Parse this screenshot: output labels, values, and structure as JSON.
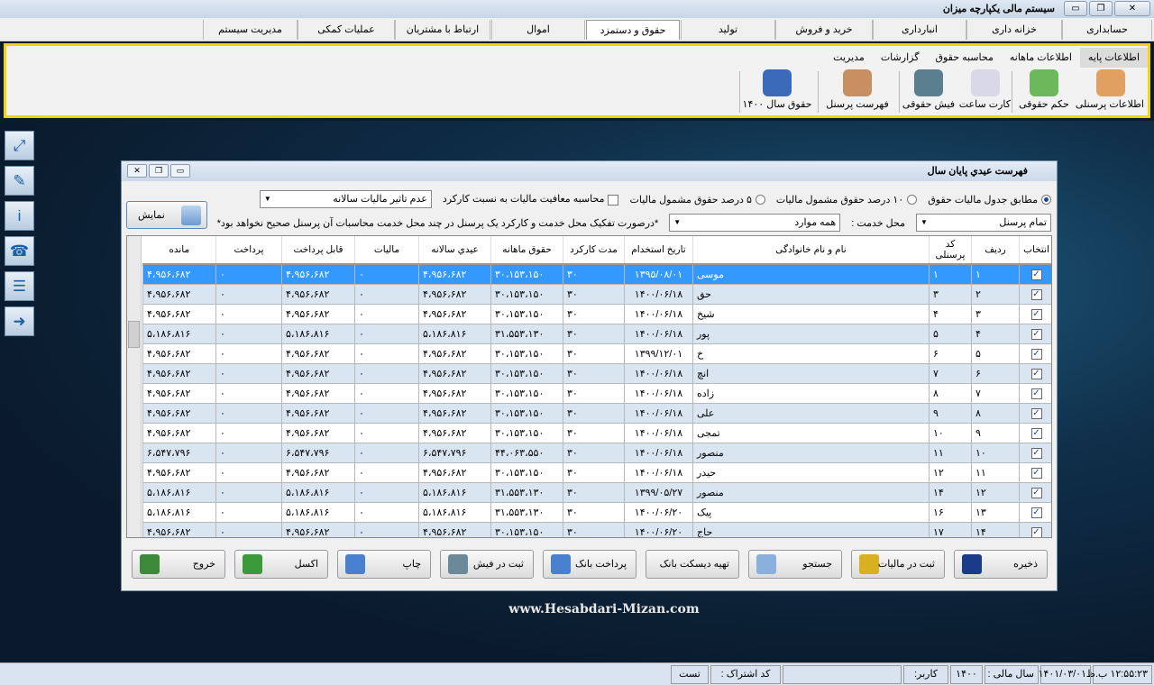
{
  "app": {
    "title": "سیستم مالی یکپارچه میزان"
  },
  "main_tabs": [
    "حسابداری",
    "خزانه داری",
    "انبارداری",
    "خرید و فروش",
    "تولید",
    "حقوق و دستمزد",
    "اموال",
    "ارتباط با مشتریان",
    "عملیات کمکی",
    "مدیریت سیستم"
  ],
  "selected_main_tab": "حقوق و دستمزد",
  "ribbon": {
    "tabs": [
      "اطلاعات پایه",
      "اطلاعات ماهانه",
      "محاسبه حقوق",
      "گزارشات",
      "مدیریت"
    ],
    "buttons": [
      "اطلاعات پرسنلی",
      "حکم حقوقی",
      "کارت ساعت",
      "فیش حقوقی",
      "فهرست پرسنل",
      "حقوق سال ۱۴۰۰"
    ]
  },
  "left_toolbar": [
    "resize-icon",
    "wand-icon",
    "info-icon",
    "phone-icon",
    "notes-icon",
    "logout-icon"
  ],
  "watermark": "www.Hesabdari-Mizan.com",
  "dialog": {
    "title": "فهرست عيدي پایان سال",
    "options": {
      "radio1": "مطابق جدول مالیات حقوق",
      "radio2": "۱۰ درصد حقوق مشمول مالیات",
      "radio3": "۵ درصد حقوق مشمول مالیات",
      "checkbox": "محاسبه معافیت مالیات به نسبت کارکرد",
      "tax_combo": "عدم تاثیر مالیات سالانه",
      "personnel_combo": "تمام پرسنل",
      "service_label": "محل خدمت :",
      "service_combo": "همه موارد",
      "note": "*درصورت تفکیک محل خدمت و کارکرد یک پرسنل در چند محل خدمت محاسبات آن پرسنل صحیح نخواهد بود*",
      "show_button": "نمایش"
    },
    "columns": [
      "انتخاب",
      "ردیف",
      "کد پرسنلی",
      "نام و نام خانوادگی",
      "تاریخ استخدام",
      "مدت کارکرد",
      "حقوق ماهانه",
      "عيدي سالانه",
      "مالیات",
      "قابل پرداخت",
      "پرداخت",
      "مانده"
    ],
    "rows": [
      [
        "۱",
        "۱",
        "موسی",
        "۱۳۹۵/۰۸/۰۱",
        "۳۰",
        "۳۰،۱۵۳،۱۵۰",
        "۴،۹۵۶،۶۸۲",
        "۰",
        "۴،۹۵۶،۶۸۲",
        "۰",
        "۴،۹۵۶،۶۸۲"
      ],
      [
        "۲",
        "۳",
        "حق",
        "۱۴۰۰/۰۶/۱۸",
        "۳۰",
        "۳۰،۱۵۳،۱۵۰",
        "۴،۹۵۶،۶۸۲",
        "۰",
        "۴،۹۵۶،۶۸۲",
        "۰",
        "۴،۹۵۶،۶۸۲"
      ],
      [
        "۳",
        "۴",
        "شیخ",
        "۱۴۰۰/۰۶/۱۸",
        "۳۰",
        "۳۰،۱۵۳،۱۵۰",
        "۴،۹۵۶،۶۸۲",
        "۰",
        "۴،۹۵۶،۶۸۲",
        "۰",
        "۴،۹۵۶،۶۸۲"
      ],
      [
        "۴",
        "۵",
        "پور",
        "۱۴۰۰/۰۶/۱۸",
        "۳۰",
        "۳۱،۵۵۳،۱۳۰",
        "۵،۱۸۶،۸۱۶",
        "۰",
        "۵،۱۸۶،۸۱۶",
        "۰",
        "۵،۱۸۶،۸۱۶"
      ],
      [
        "۵",
        "۶",
        "خ",
        "۱۳۹۹/۱۲/۰۱",
        "۳۰",
        "۳۰،۱۵۳،۱۵۰",
        "۴،۹۵۶،۶۸۲",
        "۰",
        "۴،۹۵۶،۶۸۲",
        "۰",
        "۴،۹۵۶،۶۸۲"
      ],
      [
        "۶",
        "۷",
        "انچ",
        "۱۴۰۰/۰۶/۱۸",
        "۳۰",
        "۳۰،۱۵۳،۱۵۰",
        "۴،۹۵۶،۶۸۲",
        "۰",
        "۴،۹۵۶،۶۸۲",
        "۰",
        "۴،۹۵۶،۶۸۲"
      ],
      [
        "۷",
        "۸",
        "زاده",
        "۱۴۰۰/۰۶/۱۸",
        "۳۰",
        "۳۰،۱۵۳،۱۵۰",
        "۴،۹۵۶،۶۸۲",
        "۰",
        "۴،۹۵۶،۶۸۲",
        "۰",
        "۴،۹۵۶،۶۸۲"
      ],
      [
        "۸",
        "۹",
        "علی",
        "۱۴۰۰/۰۶/۱۸",
        "۳۰",
        "۳۰،۱۵۳،۱۵۰",
        "۴،۹۵۶،۶۸۲",
        "۰",
        "۴،۹۵۶،۶۸۲",
        "۰",
        "۴،۹۵۶،۶۸۲"
      ],
      [
        "۹",
        "۱۰",
        "تمجی",
        "۱۴۰۰/۰۶/۱۸",
        "۳۰",
        "۳۰،۱۵۳،۱۵۰",
        "۴،۹۵۶،۶۸۲",
        "۰",
        "۴،۹۵۶،۶۸۲",
        "۰",
        "۴،۹۵۶،۶۸۲"
      ],
      [
        "۱۰",
        "۱۱",
        "منصور",
        "۱۴۰۰/۰۶/۱۸",
        "۳۰",
        "۴۴،۰۶۳،۵۵۰",
        "۶،۵۴۷،۷۹۶",
        "۰",
        "۶،۵۴۷،۷۹۶",
        "۰",
        "۶،۵۴۷،۷۹۶"
      ],
      [
        "۱۱",
        "۱۲",
        "حیدر",
        "۱۴۰۰/۰۶/۱۸",
        "۳۰",
        "۳۰،۱۵۳،۱۵۰",
        "۴،۹۵۶،۶۸۲",
        "۰",
        "۴،۹۵۶،۶۸۲",
        "۰",
        "۴،۹۵۶،۶۸۲"
      ],
      [
        "۱۲",
        "۱۴",
        "منصور",
        "۱۳۹۹/۰۵/۲۷",
        "۳۰",
        "۳۱،۵۵۳،۱۳۰",
        "۵،۱۸۶،۸۱۶",
        "۰",
        "۵،۱۸۶،۸۱۶",
        "۰",
        "۵،۱۸۶،۸۱۶"
      ],
      [
        "۱۳",
        "۱۶",
        "پیک",
        "۱۴۰۰/۰۶/۲۰",
        "۳۰",
        "۳۱،۵۵۳،۱۳۰",
        "۵،۱۸۶،۸۱۶",
        "۰",
        "۵،۱۸۶،۸۱۶",
        "۰",
        "۵،۱۸۶،۸۱۶"
      ],
      [
        "۱۴",
        "۱۷",
        "حاج",
        "۱۴۰۰/۰۶/۲۰",
        "۳۰",
        "۳۰،۱۵۳،۱۵۰",
        "۴،۹۵۶،۶۸۲",
        "۰",
        "۴،۹۵۶،۶۸۲",
        "۰",
        "۴،۹۵۶،۶۸۲"
      ]
    ],
    "buttons": [
      "ذخیره",
      "ثبت در مالیات",
      "جستجو",
      "تهیه دیسکت بانک",
      "پرداخت بانک",
      "ثبت در فیش",
      "چاپ",
      "اکسل",
      "خروج"
    ]
  },
  "status": {
    "time": "۱۲:۵۵:۲۳ ب.ظ",
    "date": "۱۴۰۱/۰۳/۰۱",
    "fiscal_year_label": "سال مالی :",
    "fiscal_year": "۱۴۰۰",
    "user_label": "کاربر:",
    "user": "",
    "subscription_label": "کد اشتراک :",
    "subscription": "تست"
  }
}
